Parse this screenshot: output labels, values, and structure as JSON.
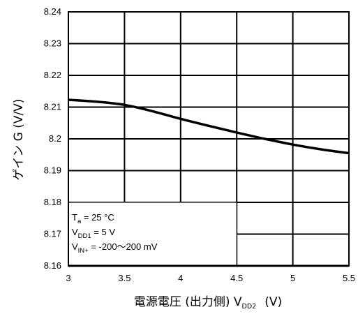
{
  "chart_data": {
    "type": "line",
    "title": "",
    "xlabel": "電源電圧 (出力側) V",
    "xlabel_sub": "DD2",
    "xlabel_unit": "(V)",
    "ylabel": "ゲイン G (V/V)",
    "xlim": [
      3,
      5.5
    ],
    "ylim": [
      8.16,
      8.24
    ],
    "x_ticks": [
      "3",
      "3.5",
      "4",
      "4.5",
      "5",
      "5.5"
    ],
    "y_ticks": [
      "8.16",
      "8.17",
      "8.18",
      "8.19",
      "8.2",
      "8.21",
      "8.22",
      "8.23",
      "8.24"
    ],
    "grid": true,
    "series": [
      {
        "x": [
          3.0,
          3.25,
          3.5,
          3.75,
          4.0,
          4.25,
          4.5,
          4.75,
          5.0,
          5.25,
          5.5
        ],
        "y": [
          8.2123,
          8.2117,
          8.2107,
          8.2087,
          8.2063,
          8.2041,
          8.202,
          8.2,
          8.1982,
          8.1967,
          8.1955
        ]
      }
    ],
    "annotation": {
      "line1": {
        "main": "T",
        "sub": "a",
        "rest": " = 25 °C"
      },
      "line2": {
        "main": "V",
        "sub": "DD1",
        "rest": " = 5 V"
      },
      "line3": {
        "main": "V",
        "sub": "IN+",
        "rest": " = -200～200 mV"
      }
    }
  }
}
